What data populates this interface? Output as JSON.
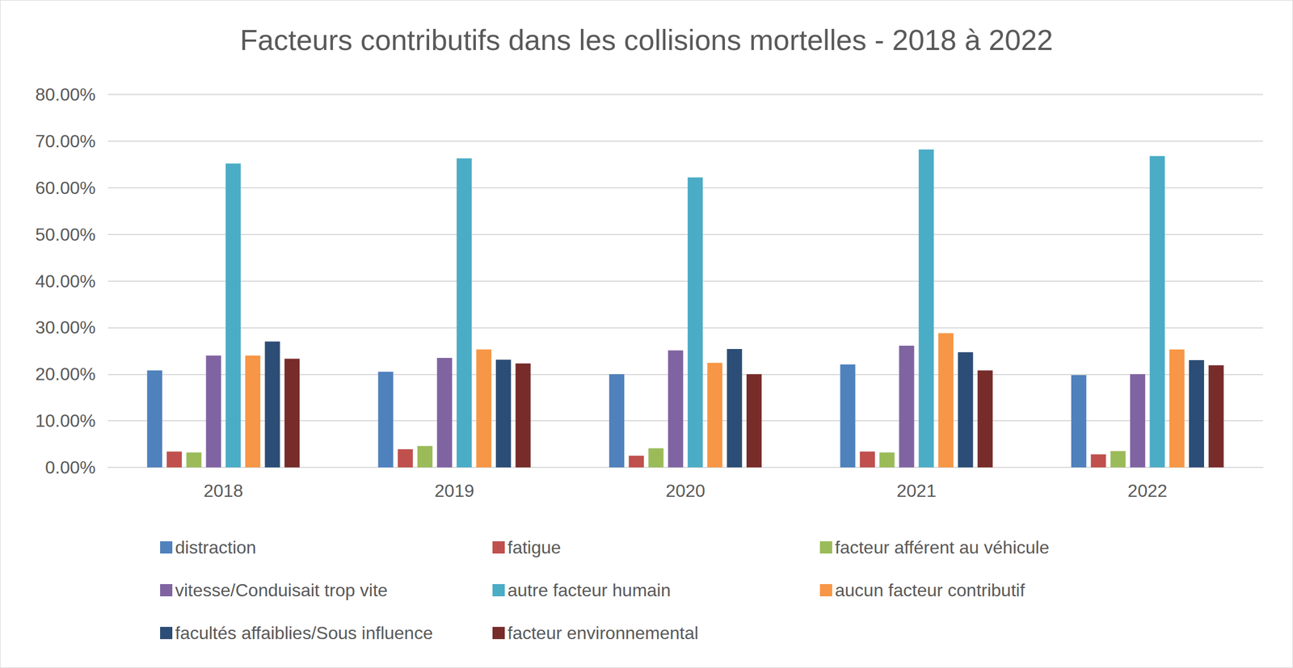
{
  "chart_data": {
    "type": "bar",
    "title": "Facteurs contributifs dans les collisions mortelles - 2018 à 2022",
    "categories": [
      "2018",
      "2019",
      "2020",
      "2021",
      "2022"
    ],
    "series": [
      {
        "name": "distraction",
        "color": "#4f81bd",
        "values": [
          20.8,
          20.5,
          20.0,
          22.1,
          19.8
        ]
      },
      {
        "name": "fatigue",
        "color": "#c0504d",
        "values": [
          3.4,
          3.9,
          2.5,
          3.4,
          2.8
        ]
      },
      {
        "name": "facteur afférent au véhicule",
        "color": "#9bbb59",
        "values": [
          3.2,
          4.6,
          4.1,
          3.2,
          3.5
        ]
      },
      {
        "name": "vitesse/Conduisait trop vite",
        "color": "#8064a2",
        "values": [
          24.0,
          23.5,
          25.1,
          26.1,
          20.0
        ]
      },
      {
        "name": "autre facteur humain",
        "color": "#4bacc6",
        "values": [
          65.2,
          66.3,
          62.2,
          68.2,
          66.8
        ]
      },
      {
        "name": "aucun facteur contributif",
        "color": "#f79646",
        "values": [
          24.0,
          25.3,
          22.4,
          28.8,
          25.3
        ]
      },
      {
        "name": "facultés affaiblies/Sous influence",
        "color": "#2c4d75",
        "values": [
          27.0,
          23.1,
          25.4,
          24.7,
          23.0
        ]
      },
      {
        "name": "facteur environnemental",
        "color": "#772c2a",
        "values": [
          23.3,
          22.3,
          20.0,
          20.8,
          21.9
        ]
      }
    ],
    "ylim": [
      0,
      80
    ],
    "yticks": [
      {
        "value": 0,
        "label": "0.00%"
      },
      {
        "value": 10,
        "label": "10.00%"
      },
      {
        "value": 20,
        "label": "20.00%"
      },
      {
        "value": 30,
        "label": "30.00%"
      },
      {
        "value": 40,
        "label": "40.00%"
      },
      {
        "value": 50,
        "label": "50.00%"
      },
      {
        "value": 60,
        "label": "60.00%"
      },
      {
        "value": 70,
        "label": "70.00%"
      },
      {
        "value": 80,
        "label": "80.00%"
      }
    ],
    "grid": true,
    "legend": "bottom"
  }
}
